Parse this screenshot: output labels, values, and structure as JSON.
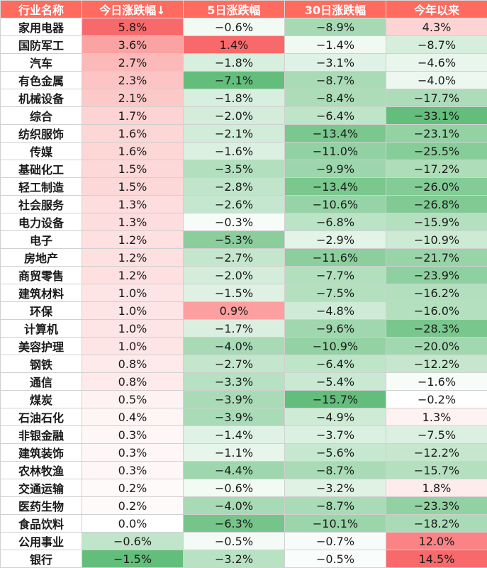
{
  "chart_data": {
    "type": "table",
    "columns": [
      "行业名称",
      "今日涨跌幅↓",
      "5日涨跌幅",
      "30日涨跌幅",
      "今年以来"
    ],
    "rows": [
      {
        "name": "家用电器",
        "values": [
          "5.8%",
          "−0.6%",
          "−8.9%",
          "4.3%"
        ]
      },
      {
        "name": "国防军工",
        "values": [
          "3.6%",
          "1.4%",
          "−1.4%",
          "−8.7%"
        ]
      },
      {
        "name": "汽车",
        "values": [
          "2.7%",
          "−1.8%",
          "−3.1%",
          "−4.6%"
        ]
      },
      {
        "name": "有色金属",
        "values": [
          "2.3%",
          "−7.1%",
          "−8.7%",
          "−4.0%"
        ]
      },
      {
        "name": "机械设备",
        "values": [
          "2.1%",
          "−1.8%",
          "−8.4%",
          "−17.7%"
        ]
      },
      {
        "name": "综合",
        "values": [
          "1.7%",
          "−2.0%",
          "−6.4%",
          "−33.1%"
        ]
      },
      {
        "name": "纺织服饰",
        "values": [
          "1.6%",
          "−2.1%",
          "−13.4%",
          "−23.1%"
        ]
      },
      {
        "name": "传媒",
        "values": [
          "1.6%",
          "−1.6%",
          "−11.0%",
          "−25.5%"
        ]
      },
      {
        "name": "基础化工",
        "values": [
          "1.5%",
          "−3.5%",
          "−9.9%",
          "−17.2%"
        ]
      },
      {
        "name": "轻工制造",
        "values": [
          "1.5%",
          "−2.8%",
          "−13.4%",
          "−26.0%"
        ]
      },
      {
        "name": "社会服务",
        "values": [
          "1.3%",
          "−2.6%",
          "−10.6%",
          "−26.8%"
        ]
      },
      {
        "name": "电力设备",
        "values": [
          "1.3%",
          "−0.3%",
          "−6.8%",
          "−15.9%"
        ]
      },
      {
        "name": "电子",
        "values": [
          "1.2%",
          "−5.3%",
          "−2.9%",
          "−10.9%"
        ]
      },
      {
        "name": "房地产",
        "values": [
          "1.2%",
          "−2.7%",
          "−11.6%",
          "−21.7%"
        ]
      },
      {
        "name": "商贸零售",
        "values": [
          "1.2%",
          "−2.0%",
          "−7.7%",
          "−23.9%"
        ]
      },
      {
        "name": "建筑材料",
        "values": [
          "1.0%",
          "−1.5%",
          "−7.5%",
          "−16.2%"
        ]
      },
      {
        "name": "环保",
        "values": [
          "1.0%",
          "0.9%",
          "−4.8%",
          "−16.0%"
        ]
      },
      {
        "name": "计算机",
        "values": [
          "1.0%",
          "−1.7%",
          "−9.6%",
          "−28.3%"
        ]
      },
      {
        "name": "美容护理",
        "values": [
          "1.0%",
          "−4.0%",
          "−10.9%",
          "−20.0%"
        ]
      },
      {
        "name": "钢铁",
        "values": [
          "0.8%",
          "−2.7%",
          "−6.4%",
          "−12.2%"
        ]
      },
      {
        "name": "通信",
        "values": [
          "0.8%",
          "−3.3%",
          "−5.4%",
          "−1.6%"
        ]
      },
      {
        "name": "煤炭",
        "values": [
          "0.5%",
          "−3.9%",
          "−15.7%",
          "−0.2%"
        ]
      },
      {
        "name": "石油石化",
        "values": [
          "0.4%",
          "−3.9%",
          "−4.9%",
          "1.3%"
        ]
      },
      {
        "name": "非银金融",
        "values": [
          "0.3%",
          "−1.4%",
          "−3.7%",
          "−7.5%"
        ]
      },
      {
        "name": "建筑装饰",
        "values": [
          "0.3%",
          "−1.1%",
          "−5.6%",
          "−12.2%"
        ]
      },
      {
        "name": "农林牧渔",
        "values": [
          "0.3%",
          "−4.4%",
          "−8.7%",
          "−15.7%"
        ]
      },
      {
        "name": "交通运输",
        "values": [
          "0.2%",
          "−0.6%",
          "−3.2%",
          "1.8%"
        ]
      },
      {
        "name": "医药生物",
        "values": [
          "0.2%",
          "−4.0%",
          "−8.7%",
          "−23.3%"
        ]
      },
      {
        "name": "食品饮料",
        "values": [
          "0.0%",
          "−6.3%",
          "−10.1%",
          "−18.2%"
        ]
      },
      {
        "name": "公用事业",
        "values": [
          "−0.6%",
          "−0.5%",
          "−0.7%",
          "12.0%"
        ]
      },
      {
        "name": "银行",
        "values": [
          "−1.5%",
          "−3.2%",
          "−0.5%",
          "14.5%"
        ]
      }
    ],
    "colors": {
      "header_bg": "#ff6b5f",
      "header_text": "#ffffff",
      "positive_max": "#f8696b",
      "negative_max": "#63be7b",
      "neutral": "#ffffff"
    },
    "sorted_by": "今日涨跌幅↓"
  }
}
